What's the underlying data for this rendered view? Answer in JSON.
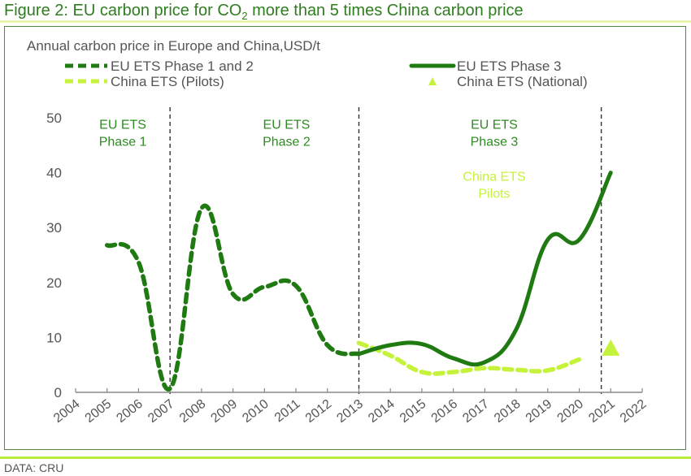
{
  "figure": {
    "title_prefix": "Figure 2: EU carbon price for CO",
    "title_sub": "2",
    "title_suffix": " more than 5 times China carbon price",
    "source": "DATA: CRU"
  },
  "colors": {
    "eu_dark_green": "#1f7a12",
    "china_light_green": "#c5f23a",
    "title_green": "#2e7d1f",
    "divider": "#333333"
  },
  "chart_data": {
    "type": "line",
    "title": "Annual carbon price in Europe and China,USD/t",
    "xlabel": "",
    "ylabel": "",
    "xlim": [
      2004,
      2022
    ],
    "ylim": [
      0,
      50
    ],
    "yticks": [
      0,
      10,
      20,
      30,
      40,
      50
    ],
    "xticks": [
      2004,
      2005,
      2006,
      2007,
      2008,
      2009,
      2010,
      2011,
      2012,
      2013,
      2014,
      2015,
      2016,
      2017,
      2018,
      2019,
      2020,
      2021,
      2022
    ],
    "grid": false,
    "legend": [
      {
        "label": "EU ETS Phase 1 and 2",
        "style": "dashed-dark"
      },
      {
        "label": "EU ETS Phase 3",
        "style": "solid-dark"
      },
      {
        "label": "China ETS (Pilots)",
        "style": "dashed-light"
      },
      {
        "label": "China ETS (National)",
        "style": "triangle-light"
      }
    ],
    "legend_position": "top",
    "series": [
      {
        "name": "EU ETS Phase 1 and 2",
        "x": [
          2005,
          2006,
          2007,
          2008,
          2009,
          2010,
          2011,
          2012,
          2013
        ],
        "y": [
          26.8,
          23.7,
          0.7,
          33.5,
          17.9,
          19.2,
          19.4,
          8.6,
          7.0
        ]
      },
      {
        "name": "EU ETS Phase 3",
        "x": [
          2013,
          2014,
          2015,
          2016,
          2017,
          2018,
          2019,
          2020,
          2021
        ],
        "y": [
          7.0,
          8.6,
          8.8,
          6.2,
          5.5,
          11.5,
          27.8,
          27.8,
          40.0
        ]
      },
      {
        "name": "China ETS (Pilots)",
        "x": [
          2013,
          2014,
          2015,
          2016,
          2017,
          2018,
          2019,
          2020
        ],
        "y": [
          9.0,
          6.7,
          3.7,
          3.7,
          4.4,
          4.1,
          4.0,
          6.0
        ]
      },
      {
        "name": "China ETS (National)",
        "x": [
          2021
        ],
        "y": [
          8.0
        ]
      }
    ],
    "phase_dividers": [
      2007,
      2013,
      2020.7
    ],
    "annotations": [
      {
        "lines": [
          "EU ETS",
          "Phase 1"
        ],
        "x": 2005.5,
        "y": 48,
        "color": "dark"
      },
      {
        "lines": [
          "EU ETS",
          "Phase 2"
        ],
        "x": 2010.7,
        "y": 48,
        "color": "dark"
      },
      {
        "lines": [
          "EU ETS",
          "Phase 3"
        ],
        "x": 2017.3,
        "y": 48,
        "color": "dark"
      },
      {
        "lines": [
          "China ETS",
          "Pilots"
        ],
        "x": 2017.3,
        "y": 38.5,
        "color": "light"
      }
    ]
  }
}
